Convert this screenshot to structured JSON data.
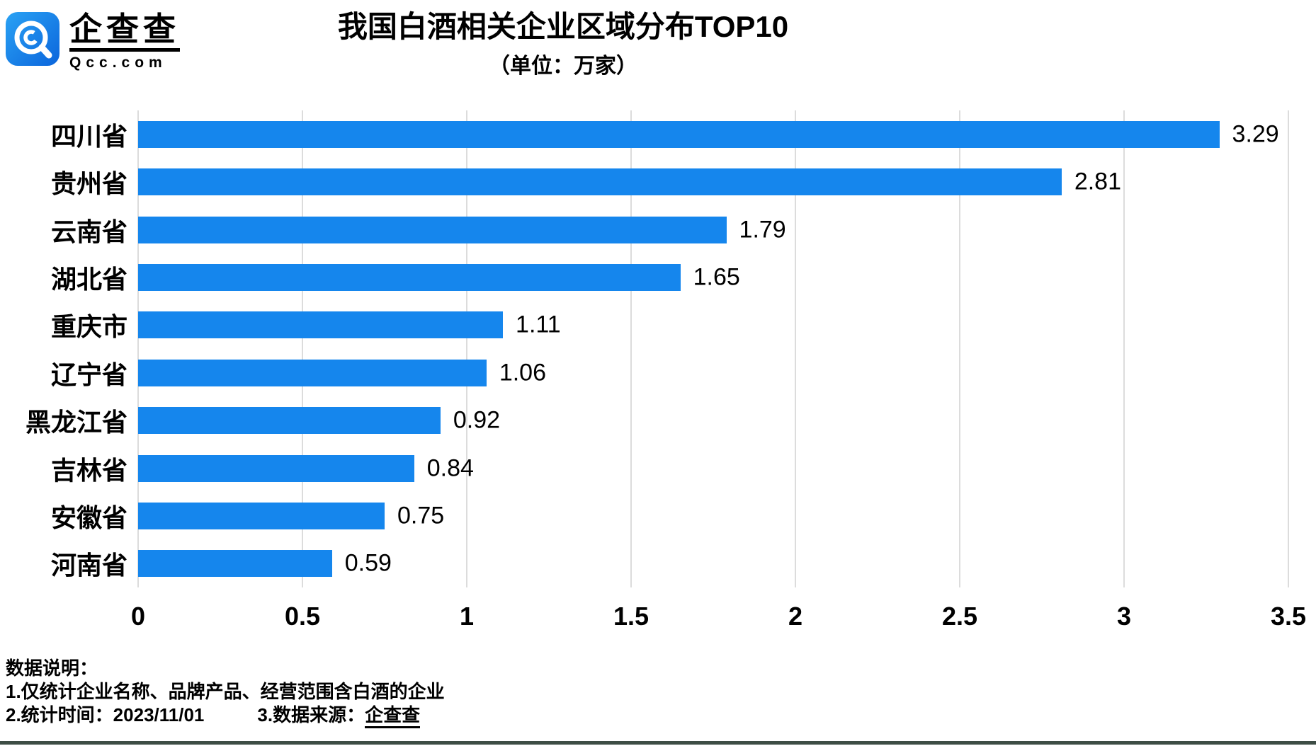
{
  "logo": {
    "brand": "企查查",
    "domain": "Qcc.com"
  },
  "header": {
    "title": "我国白酒相关企业区域分布TOP10",
    "subtitle": "（单位：万家）"
  },
  "chart_data": {
    "type": "bar",
    "orientation": "horizontal",
    "title": "我国白酒相关企业区域分布TOP10",
    "unit_label": "（单位：万家）",
    "categories": [
      "四川省",
      "贵州省",
      "云南省",
      "湖北省",
      "重庆市",
      "辽宁省",
      "黑龙江省",
      "吉林省",
      "安徽省",
      "河南省"
    ],
    "values": [
      3.29,
      2.81,
      1.79,
      1.65,
      1.11,
      1.06,
      0.92,
      0.84,
      0.75,
      0.59
    ],
    "value_labels": [
      "3.29",
      "2.81",
      "1.79",
      "1.65",
      "1.11",
      "1.06",
      "0.92",
      "0.84",
      "0.75",
      "0.59"
    ],
    "xlim": [
      0,
      3.5
    ],
    "x_ticks": [
      0,
      0.5,
      1,
      1.5,
      2,
      2.5,
      3,
      3.5
    ],
    "x_tick_labels": [
      "0",
      "0.5",
      "1",
      "1.5",
      "2",
      "2.5",
      "3",
      "3.5"
    ],
    "grid": true,
    "legend": false
  },
  "footer": {
    "heading": "数据说明：",
    "note1": "1.仅统计企业名称、品牌产品、经营范围含白酒的企业",
    "note2": "2.统计时间：2023/11/01",
    "note3_prefix": "3.数据来源：",
    "note3_source": "企查查"
  },
  "colors": {
    "bar": "#1586ed",
    "grid": "#dcdcdc",
    "text": "#000000",
    "logo_gradient_start": "#2aa2f4",
    "logo_gradient_end": "#0b65dc",
    "bottom_strip": "#3d4d45"
  }
}
